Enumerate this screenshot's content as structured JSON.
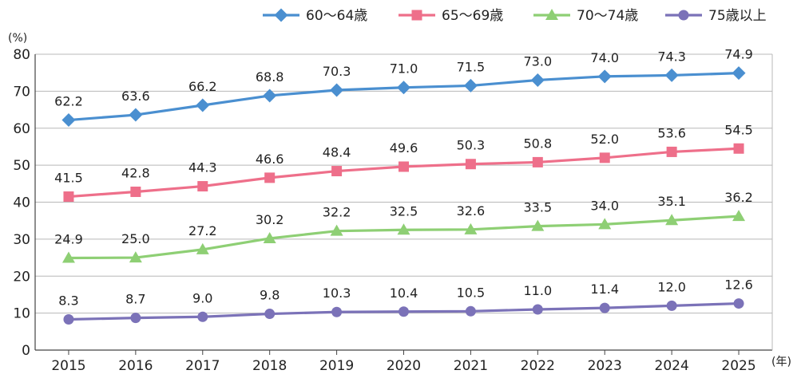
{
  "chart_data": {
    "type": "line",
    "categories": [
      "2015",
      "2016",
      "2017",
      "2018",
      "2019",
      "2020",
      "2021",
      "2022",
      "2023",
      "2024",
      "2025"
    ],
    "y_unit": "(%)",
    "x_unit": "(年)",
    "ylim": [
      0,
      80
    ],
    "yticks": [
      0,
      10,
      20,
      30,
      40,
      50,
      60,
      70,
      80
    ],
    "grid": "horizontal",
    "legend_position": "top-right",
    "series": [
      {
        "name": "60〜64歳",
        "color": "#4a8fd0",
        "marker": "diamond",
        "values": [
          62.2,
          63.6,
          66.2,
          68.8,
          70.3,
          71.0,
          71.5,
          73.0,
          74.0,
          74.3,
          74.9
        ],
        "labels": [
          "62.2",
          "63.6",
          "66.2",
          "68.8",
          "70.3",
          "71.0",
          "71.5",
          "73.0",
          "74.0",
          "74.3",
          "74.9"
        ]
      },
      {
        "name": "65〜69歳",
        "color": "#ee6f8a",
        "marker": "square",
        "values": [
          41.5,
          42.8,
          44.3,
          46.6,
          48.4,
          49.6,
          50.3,
          50.8,
          52.0,
          53.6,
          54.5
        ],
        "labels": [
          "41.5",
          "42.8",
          "44.3",
          "46.6",
          "48.4",
          "49.6",
          "50.3",
          "50.8",
          "52.0",
          "53.6",
          "54.5"
        ]
      },
      {
        "name": "70〜74歳",
        "color": "#8ecf74",
        "marker": "triangle",
        "values": [
          24.9,
          25.0,
          27.2,
          30.2,
          32.2,
          32.5,
          32.6,
          33.5,
          34.0,
          35.1,
          36.2
        ],
        "labels": [
          "24.9",
          "25.0",
          "27.2",
          "30.2",
          "32.2",
          "32.5",
          "32.6",
          "33.5",
          "34.0",
          "35.1",
          "36.2"
        ]
      },
      {
        "name": "75歳以上",
        "color": "#7b72b8",
        "marker": "circle",
        "values": [
          8.3,
          8.7,
          9.0,
          9.8,
          10.3,
          10.4,
          10.5,
          11.0,
          11.4,
          12.0,
          12.6
        ],
        "labels": [
          "8.3",
          "8.7",
          "9.0",
          "9.8",
          "10.3",
          "10.4",
          "10.5",
          "11.0",
          "11.4",
          "12.0",
          "12.6"
        ]
      }
    ]
  }
}
